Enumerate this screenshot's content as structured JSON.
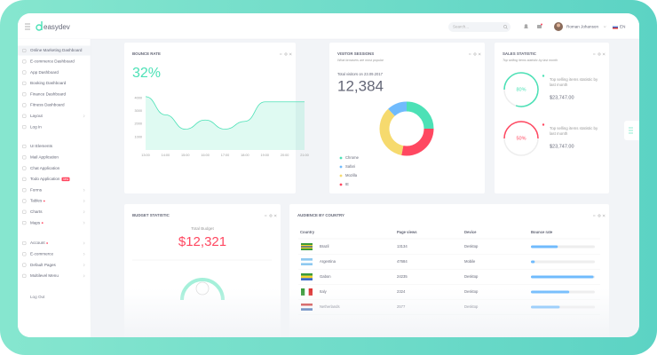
{
  "header": {
    "logo": "easydev",
    "search_placeholder": "Search...",
    "user_name": "Roman Johanson",
    "language": "EN"
  },
  "sidebar": {
    "active": 0,
    "badge": "new",
    "groups": [
      [
        {
          "label": "Online Marketing Dashboard"
        },
        {
          "label": "E-commerce Dashboard"
        },
        {
          "label": "App Dashboard"
        },
        {
          "label": "Booking Dashboard"
        },
        {
          "label": "Finance Dashboard"
        },
        {
          "label": "Fitness Dashboard"
        },
        {
          "label": "Layout",
          "submenu": true
        },
        {
          "label": "Log In"
        }
      ],
      [
        {
          "label": "UI Elements"
        },
        {
          "label": "Mail Application"
        },
        {
          "label": "Chat Application"
        },
        {
          "label": "Todo Application",
          "badge": true
        },
        {
          "label": "Forms",
          "submenu": true
        },
        {
          "label": "Tables",
          "submenu": true,
          "dot": true
        },
        {
          "label": "Charts",
          "submenu": true
        },
        {
          "label": "Maps",
          "submenu": true,
          "dot": true
        }
      ],
      [
        {
          "label": "Account",
          "submenu": true,
          "dot": true
        },
        {
          "label": "E-commerce",
          "submenu": true
        },
        {
          "label": "Default Pages",
          "submenu": true
        },
        {
          "label": "Multilevel Menu",
          "submenu": true
        }
      ]
    ],
    "logout": "Log Out"
  },
  "bounce_rate": {
    "title": "BOUNCE RATE",
    "value": "32%",
    "chart": {
      "type": "area",
      "categories": [
        "13:00",
        "14:00",
        "15:00",
        "16:00",
        "17:00",
        "18:00",
        "19:00",
        "20:00",
        "21:00"
      ],
      "values": [
        4100,
        2700,
        1600,
        2300,
        1600,
        2200,
        3700,
        3700,
        3700
      ],
      "color": "#4ce1b6",
      "ylim": [
        0,
        4500
      ],
      "yticks": [
        1000,
        2000,
        3000,
        4000
      ]
    }
  },
  "visitor_sessions": {
    "title": "VISITOR SESSIONS",
    "subtitle": "What browsers are most popular",
    "total_label": "Total visitors on 23.09.2017",
    "total": "12,384",
    "chart": {
      "type": "donut",
      "series": [
        {
          "name": "Chrome",
          "color": "#4ce1b6",
          "value": 25
        },
        {
          "name": "Safari",
          "color": "#70bbfd",
          "value": 12
        },
        {
          "name": "Mozilla",
          "color": "#f6da6e",
          "value": 35
        },
        {
          "name": "IE",
          "color": "#ff4861",
          "value": 28
        }
      ]
    }
  },
  "sales_statistic": {
    "title": "SALES STATISTIC",
    "subtitle": "Top selling items statistic by last month",
    "items": [
      {
        "percent": 80,
        "percent_label": "80%",
        "color": "#4ce1b6",
        "text": "Top selling items statistic by last month",
        "amount": "$23,747.00"
      },
      {
        "percent": 50,
        "percent_label": "50%",
        "color": "#ff4861",
        "text": "Top selling items statistic by last month",
        "amount": "$23,747.00"
      }
    ]
  },
  "budget_statistic": {
    "title": "BUDGET STATISTIC",
    "total_label": "Total Budget",
    "total": "$12,321"
  },
  "audience": {
    "title": "AUDIENCE BY COUNTRY",
    "columns": [
      "Country",
      "Page views",
      "Device",
      "Bounce rate"
    ],
    "rows": [
      {
        "country": "Brazil",
        "page_views": "13134",
        "device": "Desktop",
        "bounce_rate": 42
      },
      {
        "country": "Argentina",
        "page_views": "47684",
        "device": "Mobile",
        "bounce_rate": 6
      },
      {
        "country": "Gabon",
        "page_views": "24235",
        "device": "Desktop",
        "bounce_rate": 98
      },
      {
        "country": "Italy",
        "page_views": "2324",
        "device": "Desktop",
        "bounce_rate": 60
      },
      {
        "country": "Netherlands",
        "page_views": "2577",
        "device": "Desktop",
        "bounce_rate": 45
      }
    ]
  }
}
